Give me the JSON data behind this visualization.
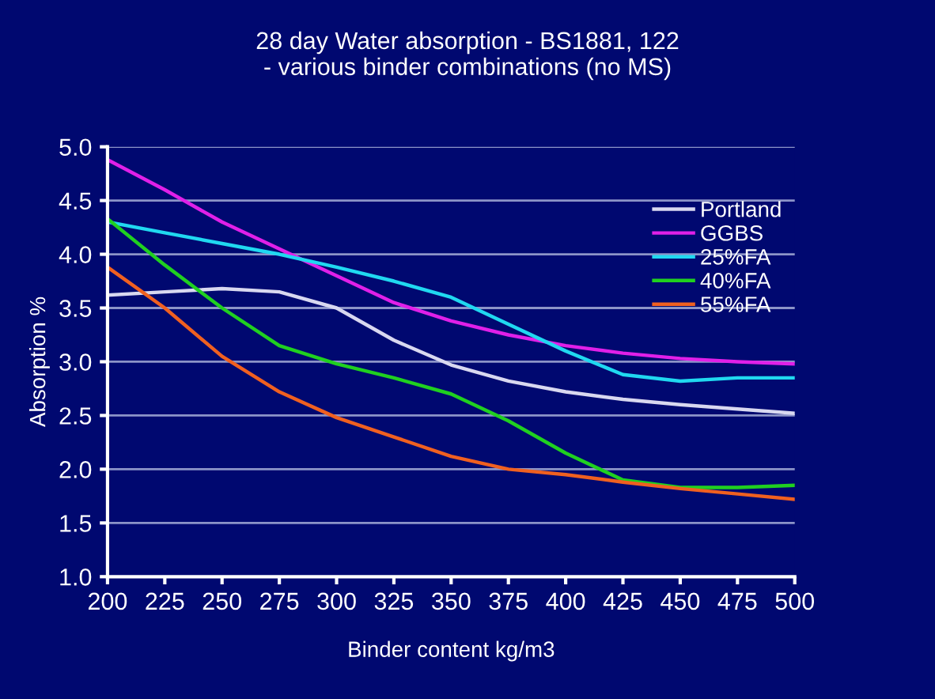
{
  "chart_data": {
    "type": "line",
    "title": "28 day Water absorption - BS1881, 122\n- various binder combinations (no MS)",
    "xlabel": "Binder content kg/m3",
    "ylabel": "Absorption %",
    "x": [
      200,
      225,
      250,
      275,
      300,
      325,
      350,
      375,
      400,
      425,
      450,
      475,
      500
    ],
    "series": [
      {
        "name": "Portland",
        "color": "#d8d8f0",
        "values": [
          3.62,
          3.65,
          3.68,
          3.65,
          3.5,
          3.2,
          2.97,
          2.82,
          2.72,
          2.65,
          2.6,
          2.56,
          2.52
        ]
      },
      {
        "name": "GGBS",
        "color": "#e020e8",
        "values": [
          4.88,
          4.6,
          4.3,
          4.05,
          3.8,
          3.55,
          3.38,
          3.25,
          3.15,
          3.08,
          3.03,
          3.0,
          2.98
        ]
      },
      {
        "name": "25%FA",
        "color": "#20d8f0",
        "values": [
          4.3,
          4.2,
          4.1,
          4.0,
          3.88,
          3.75,
          3.6,
          3.35,
          3.1,
          2.88,
          2.82,
          2.85,
          2.85
        ]
      },
      {
        "name": "40%FA",
        "color": "#20d020",
        "values": [
          4.33,
          3.9,
          3.5,
          3.15,
          2.98,
          2.85,
          2.7,
          2.45,
          2.15,
          1.9,
          1.83,
          1.83,
          1.85
        ]
      },
      {
        "name": "55%FA",
        "color": "#f06020",
        "values": [
          3.88,
          3.5,
          3.05,
          2.72,
          2.48,
          2.3,
          2.12,
          2.0,
          1.95,
          1.88,
          1.82,
          1.77,
          1.72
        ]
      }
    ],
    "xlim": [
      200,
      500
    ],
    "xticks": [
      200,
      225,
      250,
      275,
      300,
      325,
      350,
      375,
      400,
      425,
      450,
      475,
      500
    ],
    "ylim": [
      1.0,
      5.0
    ],
    "yticks": [
      {
        "value": 1.0,
        "label": "1.0"
      },
      {
        "value": 1.5,
        "label": "1.5"
      },
      {
        "value": 2.0,
        "label": "2.0"
      },
      {
        "value": 2.5,
        "label": "2.5"
      },
      {
        "value": 3.0,
        "label": "3.0"
      },
      {
        "value": 3.5,
        "label": "3.5"
      },
      {
        "value": 4.0,
        "label": "4.0"
      },
      {
        "value": 4.5,
        "label": "4.5"
      },
      {
        "value": 5.0,
        "label": "5.0"
      }
    ],
    "grid": "y",
    "legend": "top right",
    "marker": "none",
    "line_style": "solid"
  }
}
